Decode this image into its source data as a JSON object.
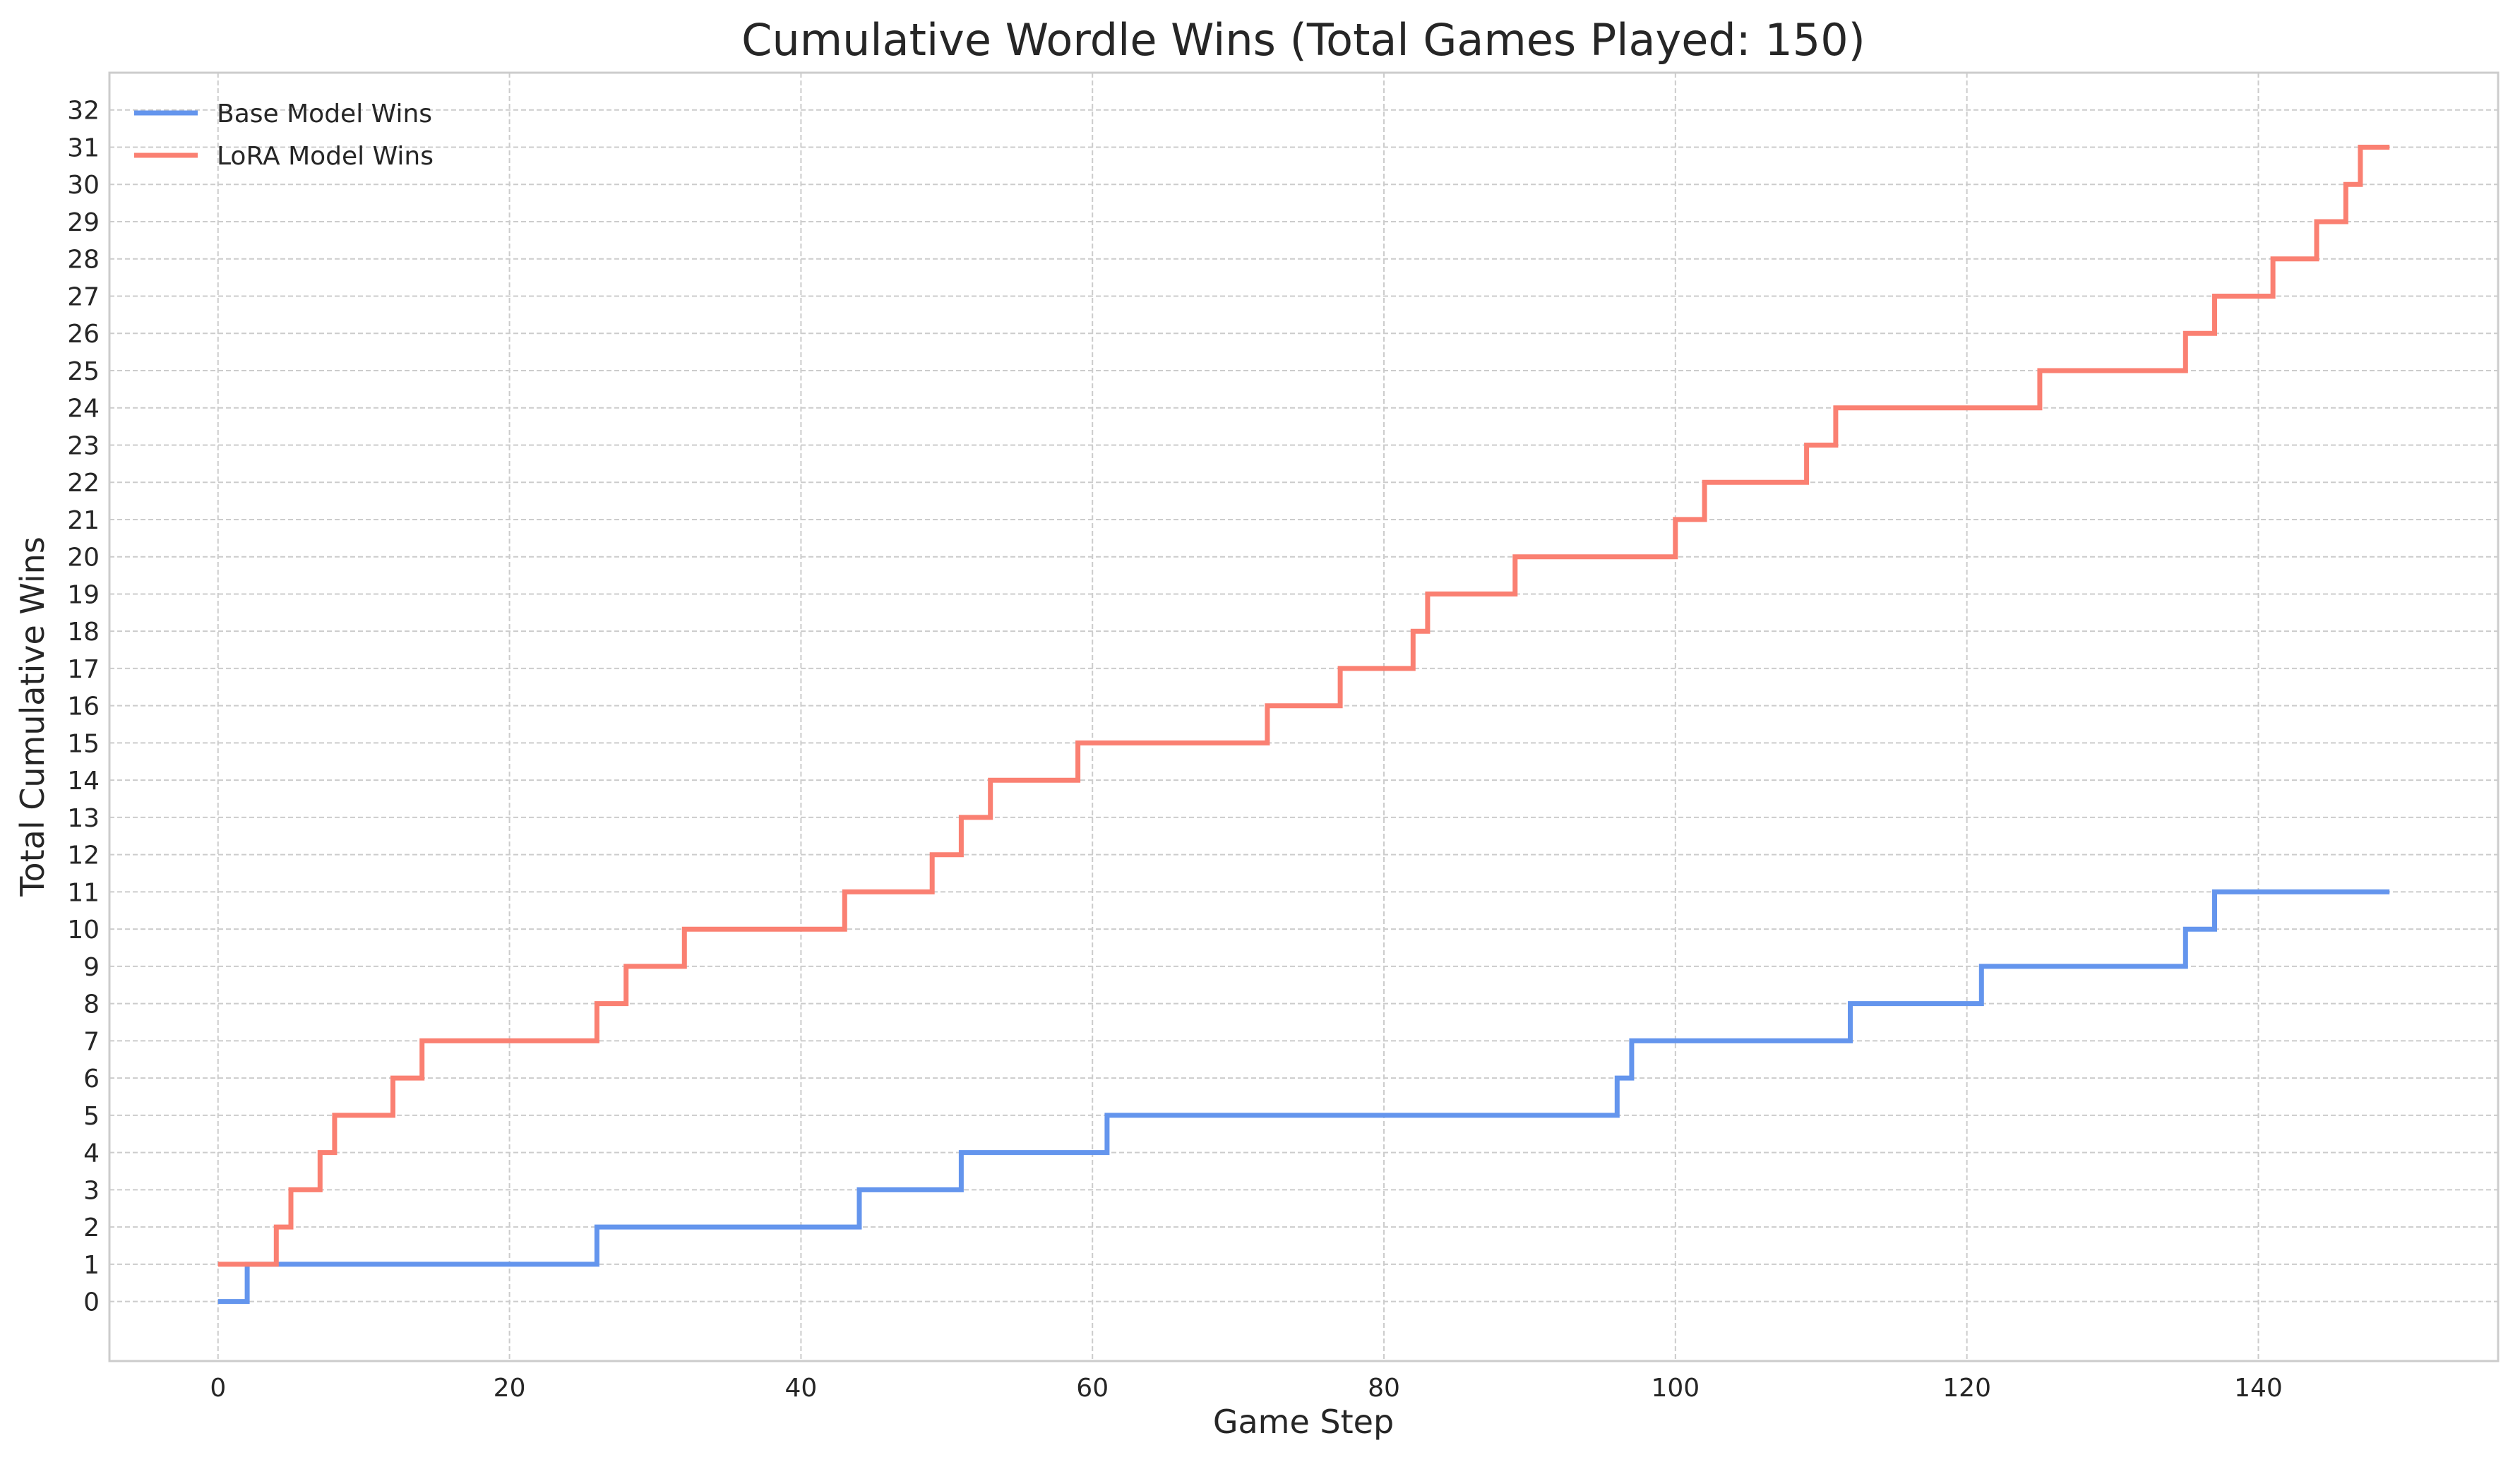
{
  "chart_data": {
    "type": "line",
    "step": "post",
    "title": "Cumulative Wordle Wins (Total Games Played: 150)",
    "xlabel": "Game Step",
    "ylabel": "Total Cumulative Wins",
    "xlim": [
      -7.45,
      156.45
    ],
    "ylim": [
      -1.6,
      33.0
    ],
    "xticks": [
      0,
      20,
      40,
      60,
      80,
      100,
      120,
      140
    ],
    "yticks": [
      0,
      1,
      2,
      3,
      4,
      5,
      6,
      7,
      8,
      9,
      10,
      11,
      12,
      13,
      14,
      15,
      16,
      17,
      18,
      19,
      20,
      21,
      22,
      23,
      24,
      25,
      26,
      27,
      28,
      29,
      30,
      31,
      32
    ],
    "grid": true,
    "legend_position": "top-left",
    "series": [
      {
        "name": "Base Model Wins",
        "color": "#6495ed",
        "points": [
          [
            0,
            0
          ],
          [
            2,
            1
          ],
          [
            26,
            2
          ],
          [
            44,
            3
          ],
          [
            51,
            4
          ],
          [
            61,
            5
          ],
          [
            96,
            6
          ],
          [
            97,
            7
          ],
          [
            112,
            8
          ],
          [
            121,
            9
          ],
          [
            135,
            10
          ],
          [
            137,
            11
          ],
          [
            149,
            11
          ]
        ]
      },
      {
        "name": "LoRA Model Wins",
        "color": "#fa8072",
        "points": [
          [
            0,
            1
          ],
          [
            4,
            2
          ],
          [
            5,
            3
          ],
          [
            7,
            4
          ],
          [
            8,
            5
          ],
          [
            12,
            6
          ],
          [
            14,
            7
          ],
          [
            26,
            8
          ],
          [
            28,
            9
          ],
          [
            32,
            10
          ],
          [
            43,
            11
          ],
          [
            49,
            12
          ],
          [
            51,
            13
          ],
          [
            53,
            14
          ],
          [
            59,
            15
          ],
          [
            72,
            16
          ],
          [
            77,
            17
          ],
          [
            82,
            18
          ],
          [
            83,
            19
          ],
          [
            89,
            20
          ],
          [
            100,
            21
          ],
          [
            102,
            22
          ],
          [
            109,
            23
          ],
          [
            111,
            24
          ],
          [
            125,
            25
          ],
          [
            135,
            26
          ],
          [
            137,
            27
          ],
          [
            141,
            28
          ],
          [
            144,
            29
          ],
          [
            146,
            30
          ],
          [
            147,
            31
          ],
          [
            149,
            31
          ]
        ]
      }
    ]
  }
}
